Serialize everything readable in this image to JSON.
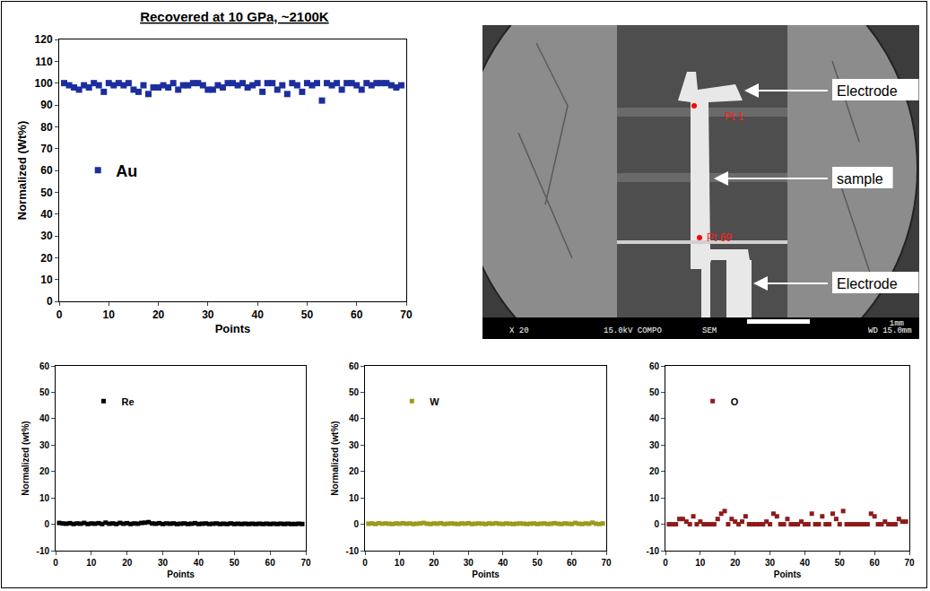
{
  "chart_data": [
    {
      "type": "scatter",
      "title": "Recovered at 10 GPa, ~2100K",
      "x_label": "Points",
      "y_label": "Normalized (Wt%)",
      "series": [
        {
          "name": "Au",
          "color": "#1c2e9e",
          "marker": "square",
          "x": [
            1,
            2,
            3,
            4,
            5,
            6,
            7,
            8,
            9,
            10,
            11,
            12,
            13,
            14,
            15,
            16,
            17,
            18,
            19,
            20,
            21,
            22,
            23,
            24,
            25,
            26,
            27,
            28,
            29,
            30,
            31,
            32,
            33,
            34,
            35,
            36,
            37,
            38,
            39,
            40,
            41,
            42,
            43,
            44,
            45,
            46,
            47,
            48,
            49,
            50,
            51,
            52,
            53,
            54,
            55,
            56,
            57,
            58,
            59,
            60,
            61,
            62,
            63,
            64,
            65,
            66,
            67,
            68,
            69
          ],
          "values": [
            100,
            99,
            98,
            97,
            99,
            98,
            100,
            99,
            96,
            100,
            99,
            100,
            99,
            100,
            97,
            96,
            99,
            95,
            98,
            98,
            99,
            98,
            100,
            97,
            99,
            99,
            100,
            100,
            99,
            97,
            97,
            99,
            98,
            100,
            100,
            99,
            100,
            98,
            99,
            100,
            96,
            100,
            100,
            97,
            99,
            95,
            100,
            99,
            96,
            100,
            99,
            100,
            92,
            100,
            99,
            100,
            97,
            100,
            100,
            99,
            97,
            100,
            99,
            100,
            100,
            100,
            99,
            98,
            99
          ]
        }
      ],
      "xlim": [
        0,
        70
      ],
      "xticks": [
        0,
        10,
        20,
        30,
        40,
        50,
        60,
        70
      ],
      "ylim": [
        0,
        120
      ],
      "yticks": [
        0,
        10,
        20,
        30,
        40,
        50,
        60,
        70,
        80,
        90,
        100,
        110,
        120
      ],
      "legend": "center left",
      "grid": false
    },
    {
      "type": "scatter",
      "x_label": "Points",
      "y_label": "Normalized (wt%)",
      "series": [
        {
          "name": "Re",
          "color": "#000000",
          "marker": "square",
          "x": [
            1,
            2,
            3,
            4,
            5,
            6,
            7,
            8,
            9,
            10,
            11,
            12,
            13,
            14,
            15,
            16,
            17,
            18,
            19,
            20,
            21,
            22,
            23,
            24,
            25,
            26,
            27,
            28,
            29,
            30,
            31,
            32,
            33,
            34,
            35,
            36,
            37,
            38,
            39,
            40,
            41,
            42,
            43,
            44,
            45,
            46,
            47,
            48,
            49,
            50,
            51,
            52,
            53,
            54,
            55,
            56,
            57,
            58,
            59,
            60,
            61,
            62,
            63,
            64,
            65,
            66,
            67,
            68,
            69
          ],
          "values": [
            0.5,
            0.3,
            0.2,
            0.4,
            0.1,
            0.3,
            0.2,
            0.5,
            0.1,
            0.3,
            0.2,
            0.4,
            0.1,
            0.6,
            0.2,
            0.3,
            0.1,
            0.5,
            0.2,
            0.4,
            0.1,
            0.3,
            0.2,
            0.5,
            0.6,
            0.8,
            0.3,
            0.2,
            0.4,
            0.1,
            0.3,
            0.2,
            0.3,
            0.1,
            0.2,
            0.3,
            0.1,
            0.2,
            0.4,
            0.1,
            0.2,
            0.3,
            0.1,
            0.2,
            0.3,
            0.1,
            0.2,
            0.1,
            0.3,
            0.1,
            0.2,
            0.1,
            0.2,
            0.1,
            0.2,
            0.1,
            0.2,
            0.1,
            0.2,
            0.1,
            0.2,
            0.1,
            0.2,
            0.1,
            0.2,
            0.1,
            0.1,
            0.2,
            0.1
          ]
        }
      ],
      "xlim": [
        0,
        70
      ],
      "xticks": [
        0,
        10,
        20,
        30,
        40,
        50,
        60,
        70
      ],
      "ylim": [
        -10,
        60
      ],
      "yticks": [
        -10,
        0,
        10,
        20,
        30,
        40,
        50,
        60
      ],
      "legend": "upper left",
      "grid": false
    },
    {
      "type": "scatter",
      "x_label": "Points",
      "y_label": "Normalized (wt%)",
      "series": [
        {
          "name": "W",
          "color": "#9c9a1c",
          "marker": "square",
          "x": [
            1,
            2,
            3,
            4,
            5,
            6,
            7,
            8,
            9,
            10,
            11,
            12,
            13,
            14,
            15,
            16,
            17,
            18,
            19,
            20,
            21,
            22,
            23,
            24,
            25,
            26,
            27,
            28,
            29,
            30,
            31,
            32,
            33,
            34,
            35,
            36,
            37,
            38,
            39,
            40,
            41,
            42,
            43,
            44,
            45,
            46,
            47,
            48,
            49,
            50,
            51,
            52,
            53,
            54,
            55,
            56,
            57,
            58,
            59,
            60,
            61,
            62,
            63,
            64,
            65,
            66,
            67,
            68,
            69
          ],
          "values": [
            0.2,
            0.3,
            0.1,
            0.4,
            0.2,
            0.3,
            0.2,
            0.1,
            0.3,
            0.2,
            0.4,
            0.2,
            0.3,
            0.1,
            0.2,
            0.3,
            0.5,
            0.2,
            0.1,
            0.3,
            0.2,
            0.4,
            0.1,
            0.2,
            0.3,
            0.2,
            0.1,
            0.3,
            0.2,
            0.4,
            0.1,
            0.2,
            0.3,
            0.2,
            0.1,
            0.3,
            0.2,
            0.4,
            0.2,
            0.1,
            0.3,
            0.2,
            0.1,
            0.2,
            0.3,
            0.2,
            0.1,
            0.2,
            0.3,
            0.1,
            0.2,
            0.3,
            0.1,
            0.2,
            0.4,
            0.2,
            0.1,
            0.3,
            0.2,
            0.1,
            0.5,
            0.2,
            0.1,
            0.3,
            0.2,
            0.6,
            0.2,
            0.1,
            0.3
          ]
        }
      ],
      "xlim": [
        0,
        70
      ],
      "xticks": [
        0,
        10,
        20,
        30,
        40,
        50,
        60,
        70
      ],
      "ylim": [
        -10,
        60
      ],
      "yticks": [
        -10,
        0,
        10,
        20,
        30,
        40,
        50,
        60
      ],
      "legend": "upper left",
      "grid": false
    },
    {
      "type": "scatter",
      "x_label": "Points",
      "series": [
        {
          "name": "O",
          "color": "#8e1b1b",
          "marker": "square",
          "x": [
            1,
            2,
            3,
            4,
            5,
            6,
            7,
            8,
            9,
            10,
            11,
            12,
            13,
            14,
            15,
            16,
            17,
            18,
            19,
            20,
            21,
            22,
            23,
            24,
            25,
            26,
            27,
            28,
            29,
            30,
            31,
            32,
            33,
            34,
            35,
            36,
            37,
            38,
            39,
            40,
            41,
            42,
            43,
            44,
            45,
            46,
            47,
            48,
            49,
            50,
            51,
            52,
            53,
            54,
            55,
            56,
            57,
            58,
            59,
            60,
            61,
            62,
            63,
            64,
            65,
            66,
            67,
            68,
            69
          ],
          "values": [
            0,
            0,
            0,
            2,
            2,
            1,
            0,
            3,
            0,
            1,
            0,
            0,
            0,
            0,
            2,
            4,
            5,
            0,
            2,
            1,
            0,
            1,
            3,
            0,
            0,
            0,
            0,
            0,
            1,
            0,
            4,
            3,
            0,
            0,
            2,
            0,
            0,
            0,
            1,
            0,
            0,
            4,
            0,
            0,
            3,
            0,
            0,
            4,
            2,
            0,
            5,
            0,
            0,
            0,
            0,
            0,
            0,
            0,
            4,
            3,
            0,
            0,
            1,
            0,
            0,
            0,
            2,
            1,
            1
          ]
        }
      ],
      "xlim": [
        0,
        70
      ],
      "xticks": [
        0,
        10,
        20,
        30,
        40,
        50,
        60,
        70
      ],
      "ylim": [
        -10,
        60
      ],
      "yticks": [
        -10,
        0,
        10,
        20,
        30,
        40,
        50,
        60
      ],
      "legend": "upper left",
      "grid": false
    }
  ],
  "sem_image": {
    "arrows": [
      "Electrode",
      "sample",
      "Electrode"
    ],
    "points": [
      "Pt 1",
      "Pt 69"
    ],
    "scale_bar": "1mm",
    "footer": [
      "X 20",
      "15.0kV COMPO",
      "SEM",
      "WD 15.0mm"
    ]
  }
}
